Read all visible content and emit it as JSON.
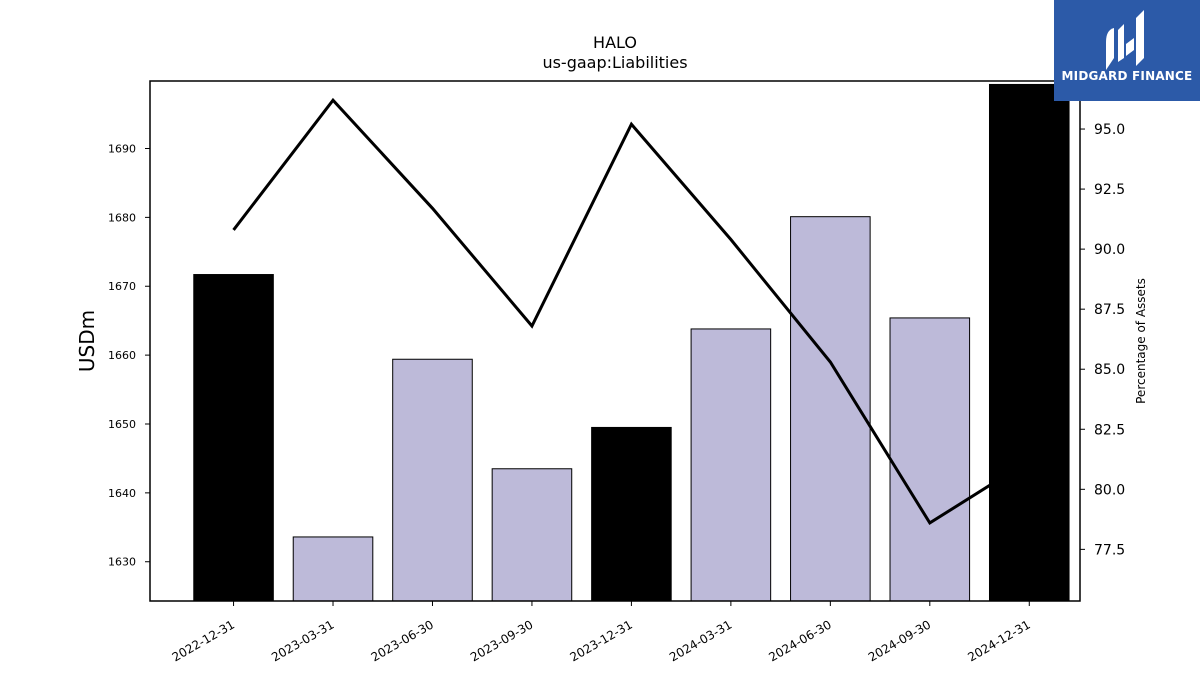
{
  "title": "HALO",
  "subtitle": "us-gaap:Liabilities",
  "brand": {
    "name": "MIDGARD FINANCE",
    "logo_icon": "midgard-mh-monogram-icon",
    "bg_color": "#2c5aa8",
    "text_color": "#ffffff"
  },
  "colors": {
    "annual_bar": "#000000",
    "quarterly_bar": "#bdbad9",
    "line": "#000000"
  },
  "chart_data": {
    "type": "bar",
    "title": "HALO",
    "subtitle": "us-gaap:Liabilities",
    "categories": [
      "2022-12-31",
      "2023-03-31",
      "2023-06-30",
      "2023-09-30",
      "2023-12-31",
      "2024-03-31",
      "2024-06-30",
      "2024-09-30",
      "2024-12-31"
    ],
    "series": [
      {
        "axis": "left",
        "type": "bar",
        "values": [
          1671.7,
          1633.6,
          1659.4,
          1643.5,
          1649.5,
          1663.8,
          1680.1,
          1665.4,
          1699.3
        ],
        "bar_colors": [
          "#000000",
          "#bdbad9",
          "#bdbad9",
          "#bdbad9",
          "#000000",
          "#bdbad9",
          "#bdbad9",
          "#bdbad9",
          "#000000"
        ]
      },
      {
        "axis": "right",
        "type": "line",
        "values": [
          90.8,
          96.2,
          91.7,
          86.8,
          95.2,
          90.4,
          85.3,
          78.6,
          81.2
        ]
      }
    ],
    "ylabel": "USDm",
    "ylabel_right": "Percentage of Assets",
    "ylim": [
      1624.3,
      1699.8
    ],
    "ylim_right": [
      75.35,
      97.0
    ],
    "yticks": [
      1630,
      1640,
      1650,
      1660,
      1670,
      1680,
      1690
    ],
    "yticks_right": [
      77.5,
      80.0,
      82.5,
      85.0,
      87.5,
      90.0,
      92.5,
      95.0
    ],
    "yticks_right_labels": [
      "77.5",
      "80.0",
      "82.5",
      "85.0",
      "87.5",
      "90.0",
      "92.5",
      "95.0"
    ],
    "grid": false,
    "legend": "none"
  }
}
